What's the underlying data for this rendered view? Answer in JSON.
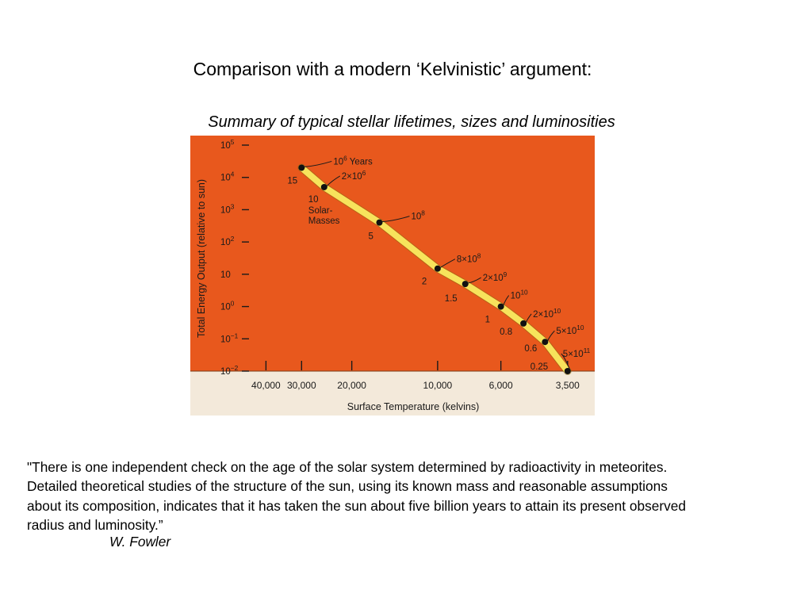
{
  "slide": {
    "title": "Comparison with a modern ‘Kelvinistic’ argument:",
    "subtitle": "Summary of typical stellar lifetimes, sizes and luminosities",
    "quote_lines": [
      "\"There is one independent check on the age of the solar system determined by radioactivity in meteorites.",
      "Detailed theoretical studies of the structure of the sun, using its known mass and reasonable assumptions",
      "about its composition, indicates that it has taken the sun about five billion years to attain its present observed",
      " radius and luminosity.”"
    ],
    "author": "W. Fowler"
  },
  "colors": {
    "plot_background": "#e8581d",
    "chart_paper": "#f3e9da",
    "main_sequence_band": "#f7e35c",
    "point": "#111111"
  },
  "chart_data": {
    "type": "scatter",
    "xlabel": "Surface Temperature (kelvins)",
    "ylabel": "Total Energy Output (relative to sun)",
    "x_scale": "reversed",
    "y_scale": "log",
    "xlim": [
      45000,
      3300
    ],
    "ylim": [
      0.01,
      100000
    ],
    "x_ticks": [
      {
        "value": 40000,
        "label": "40,000"
      },
      {
        "value": 30000,
        "label": "30,000"
      },
      {
        "value": 20000,
        "label": "20,000"
      },
      {
        "value": 10000,
        "label": "10,000"
      },
      {
        "value": 6000,
        "label": "6,000"
      },
      {
        "value": 3500,
        "label": "3,500"
      }
    ],
    "y_ticks": [
      {
        "value": 0.01,
        "base": "10",
        "exp": "−2"
      },
      {
        "value": 0.1,
        "base": "10",
        "exp": "−1"
      },
      {
        "value": 1,
        "base": "10",
        "exp": "0"
      },
      {
        "value": 10,
        "base": "10",
        "exp": ""
      },
      {
        "value": 100,
        "base": "10",
        "exp": "2"
      },
      {
        "value": 1000,
        "base": "10",
        "exp": "3"
      },
      {
        "value": 10000,
        "base": "10",
        "exp": "4"
      },
      {
        "value": 100000,
        "base": "10",
        "exp": "5"
      }
    ],
    "grid": false,
    "series": [
      {
        "points": [
          {
            "temperature": 30000,
            "luminosity": 20000,
            "mass": "15",
            "lifetime_base": "10",
            "lifetime_exp": "6",
            "lifetime_suffix": " Years"
          },
          {
            "temperature": 25000,
            "luminosity": 5000,
            "mass": "10",
            "lifetime_base": "2×10",
            "lifetime_exp": "6",
            "lifetime_suffix": ""
          },
          {
            "temperature": 16000,
            "luminosity": 400,
            "mass": "5",
            "lifetime_base": "10",
            "lifetime_exp": "8",
            "lifetime_suffix": ""
          },
          {
            "temperature": 10000,
            "luminosity": 15,
            "mass": "2",
            "lifetime_base": "8×10",
            "lifetime_exp": "8",
            "lifetime_suffix": ""
          },
          {
            "temperature": 8000,
            "luminosity": 5,
            "mass": "1.5",
            "lifetime_base": "2×10",
            "lifetime_exp": "9",
            "lifetime_suffix": ""
          },
          {
            "temperature": 6000,
            "luminosity": 1,
            "mass": "1",
            "lifetime_base": "10",
            "lifetime_exp": "10",
            "lifetime_suffix": ""
          },
          {
            "temperature": 5000,
            "luminosity": 0.3,
            "mass": "0.8",
            "lifetime_base": "2×10",
            "lifetime_exp": "10",
            "lifetime_suffix": ""
          },
          {
            "temperature": 4200,
            "luminosity": 0.08,
            "mass": "0.6",
            "lifetime_base": "5×10",
            "lifetime_exp": "10",
            "lifetime_suffix": ""
          },
          {
            "temperature": 3500,
            "luminosity": 0.01,
            "mass": "0.25",
            "lifetime_base": "5×10",
            "lifetime_exp": "11",
            "lifetime_suffix": ""
          }
        ]
      }
    ],
    "annotations": {
      "mass_caption_lines": [
        "Solar-",
        "Masses"
      ]
    }
  }
}
